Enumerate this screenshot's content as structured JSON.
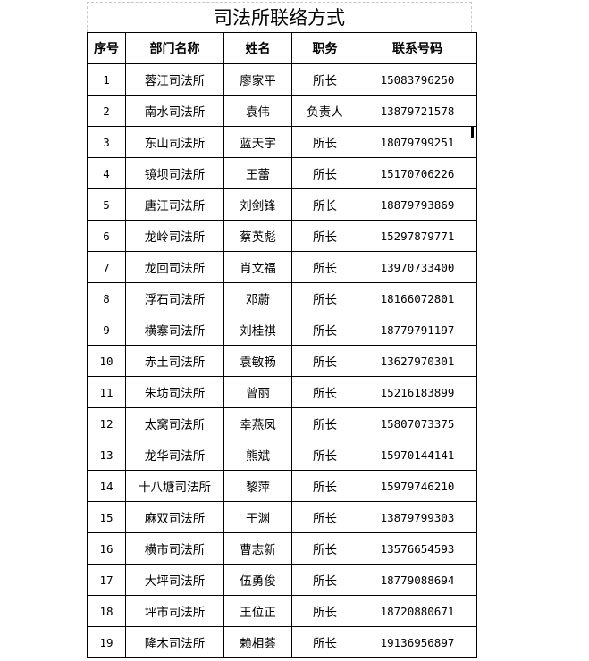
{
  "title": "司法所联络方式",
  "columns": [
    "序号",
    "部门名称",
    "姓名",
    "职务",
    "联系号码"
  ],
  "rows": [
    [
      "1",
      "蓉江司法所",
      "廖家平",
      "所长",
      "15083796250"
    ],
    [
      "2",
      "南水司法所",
      "袁伟",
      "负责人",
      "13879721578"
    ],
    [
      "3",
      "东山司法所",
      "蓝天宇",
      "所长",
      "18079799251"
    ],
    [
      "4",
      "镜坝司法所",
      "王蕾",
      "所长",
      "15170706226"
    ],
    [
      "5",
      "唐江司法所",
      "刘剑锋",
      "所长",
      "18879793869"
    ],
    [
      "6",
      "龙岭司法所",
      "蔡英彪",
      "所长",
      "15297879771"
    ],
    [
      "7",
      "龙回司法所",
      "肖文福",
      "所长",
      "13970733400"
    ],
    [
      "8",
      "浮石司法所",
      "邓蔚",
      "所长",
      "18166072801"
    ],
    [
      "9",
      "横寨司法所",
      "刘桂祺",
      "所长",
      "18779791197"
    ],
    [
      "10",
      "赤土司法所",
      "袁敏畅",
      "所长",
      "13627970301"
    ],
    [
      "11",
      "朱坊司法所",
      "曾丽",
      "所长",
      "15216183899"
    ],
    [
      "12",
      "太窝司法所",
      "幸燕凤",
      "所长",
      "15807073375"
    ],
    [
      "13",
      "龙华司法所",
      "熊斌",
      "所长",
      "15970144141"
    ],
    [
      "14",
      "十八塘司法所",
      "黎萍",
      "所长",
      "15979746210"
    ],
    [
      "15",
      "麻双司法所",
      "于渊",
      "所长",
      "13879799303"
    ],
    [
      "16",
      "横市司法所",
      "曹志新",
      "所长",
      "13576654593"
    ],
    [
      "17",
      "大坪司法所",
      "伍勇俊",
      "所长",
      "18779088694"
    ],
    [
      "18",
      "坪市司法所",
      "王位正",
      "所长",
      "18720880671"
    ],
    [
      "19",
      "隆木司法所",
      "赖相荟",
      "所长",
      "19136956897"
    ]
  ]
}
